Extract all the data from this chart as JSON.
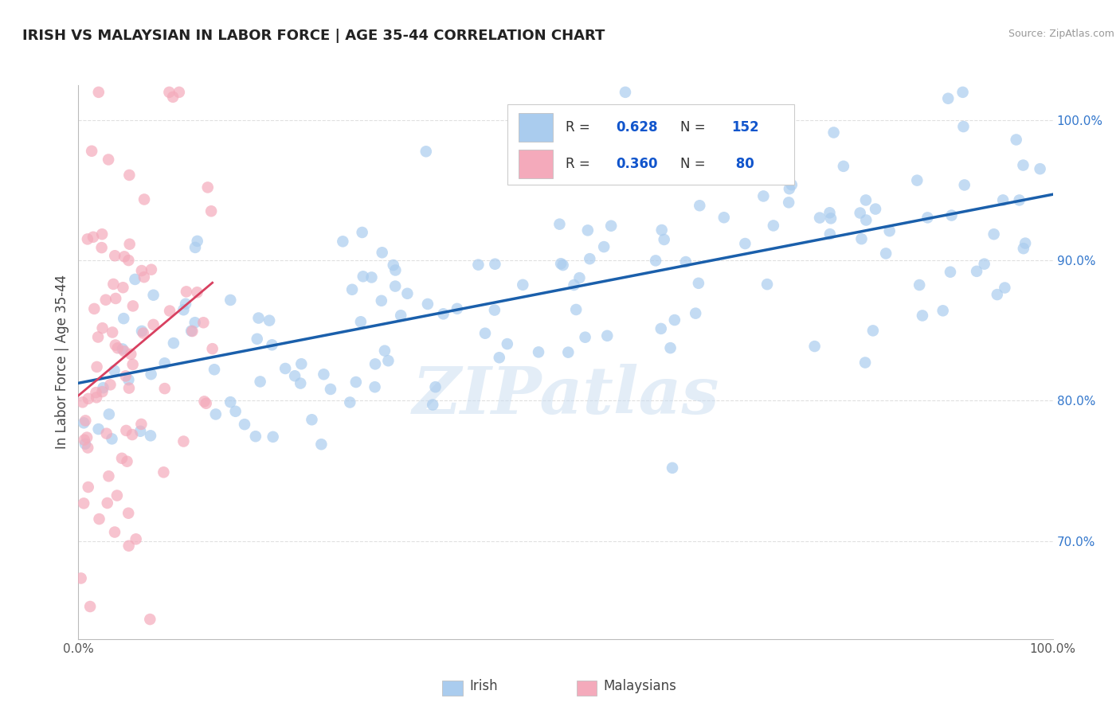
{
  "title": "IRISH VS MALAYSIAN IN LABOR FORCE | AGE 35-44 CORRELATION CHART",
  "source_text": "Source: ZipAtlas.com",
  "ylabel": "In Labor Force | Age 35-44",
  "xlim": [
    0.0,
    1.0
  ],
  "ylim": [
    0.63,
    1.025
  ],
  "xtick_positions": [
    0.0,
    0.25,
    0.5,
    0.75,
    1.0
  ],
  "xticklabels": [
    "0.0%",
    "",
    "",
    "",
    "100.0%"
  ],
  "ytick_positions": [
    0.7,
    0.8,
    0.9,
    1.0
  ],
  "ytick_labels": [
    "70.0%",
    "80.0%",
    "90.0%",
    "100.0%"
  ],
  "irish_R": 0.628,
  "irish_N": 152,
  "malaysian_R": 0.36,
  "malaysian_N": 80,
  "irish_color": "#AACCEE",
  "malaysian_color": "#F4AABB",
  "irish_line_color": "#1A5FAB",
  "malaysian_line_color": "#D84060",
  "watermark": "ZIPatlas",
  "background_color": "#FFFFFF",
  "grid_color": "#DDDDDD",
  "legend_irish_label": "Irish",
  "legend_malaysian_label": "Malaysians",
  "title_fontsize": 13,
  "axis_label_fontsize": 12,
  "tick_fontsize": 11,
  "legend_fontsize": 12
}
